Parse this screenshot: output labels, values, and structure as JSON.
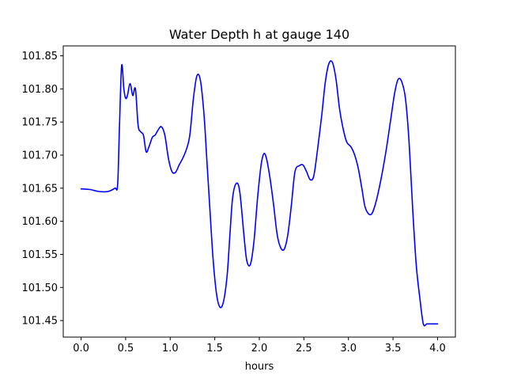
{
  "chart_data": {
    "type": "line",
    "title": "Water Depth h at gauge 140",
    "xlabel": "hours",
    "ylabel": "",
    "xlim": [
      -0.2,
      4.2
    ],
    "ylim": [
      101.425,
      101.865
    ],
    "xticks": [
      {
        "value": 0.0,
        "label": "0.0"
      },
      {
        "value": 0.5,
        "label": "0.5"
      },
      {
        "value": 1.0,
        "label": "1.0"
      },
      {
        "value": 1.5,
        "label": "1.5"
      },
      {
        "value": 2.0,
        "label": "2.0"
      },
      {
        "value": 2.5,
        "label": "2.5"
      },
      {
        "value": 3.0,
        "label": "3.0"
      },
      {
        "value": 3.5,
        "label": "3.5"
      },
      {
        "value": 4.0,
        "label": "4.0"
      }
    ],
    "yticks": [
      {
        "value": 101.45,
        "label": "101.45"
      },
      {
        "value": 101.5,
        "label": "101.50"
      },
      {
        "value": 101.55,
        "label": "101.55"
      },
      {
        "value": 101.6,
        "label": "101.60"
      },
      {
        "value": 101.65,
        "label": "101.65"
      },
      {
        "value": 101.7,
        "label": "101.70"
      },
      {
        "value": 101.75,
        "label": "101.75"
      },
      {
        "value": 101.8,
        "label": "101.80"
      },
      {
        "value": 101.85,
        "label": "101.85"
      }
    ],
    "grid": false,
    "series": [
      {
        "color": "#0000ff",
        "x": [
          0.0,
          0.1,
          0.2,
          0.3,
          0.38,
          0.41,
          0.43,
          0.455,
          0.48,
          0.5,
          0.52,
          0.55,
          0.58,
          0.61,
          0.64,
          0.67,
          0.7,
          0.73,
          0.76,
          0.8,
          0.83,
          0.86,
          0.9,
          0.94,
          0.98,
          1.02,
          1.06,
          1.1,
          1.14,
          1.18,
          1.22,
          1.26,
          1.3,
          1.34,
          1.38,
          1.41,
          1.44,
          1.48,
          1.52,
          1.56,
          1.6,
          1.64,
          1.67,
          1.7,
          1.74,
          1.78,
          1.83,
          1.86,
          1.9,
          1.94,
          1.98,
          2.02,
          2.05,
          2.08,
          2.12,
          2.16,
          2.2,
          2.24,
          2.28,
          2.32,
          2.36,
          2.4,
          2.45,
          2.49,
          2.53,
          2.57,
          2.61,
          2.65,
          2.7,
          2.74,
          2.78,
          2.82,
          2.86,
          2.9,
          2.94,
          2.98,
          3.03,
          3.07,
          3.11,
          3.15,
          3.19,
          3.25,
          3.3,
          3.36,
          3.42,
          3.47,
          3.52,
          3.56,
          3.6,
          3.64,
          3.68,
          3.72,
          3.76,
          3.8,
          3.84,
          3.88,
          3.92,
          3.96,
          4.0
        ],
        "y": [
          101.649,
          101.648,
          101.645,
          101.645,
          101.65,
          101.655,
          101.74,
          101.835,
          101.8,
          101.786,
          101.79,
          101.808,
          101.79,
          101.8,
          101.745,
          101.735,
          101.73,
          101.705,
          101.712,
          101.727,
          101.73,
          101.737,
          101.743,
          101.73,
          101.695,
          101.675,
          101.674,
          101.685,
          101.695,
          101.708,
          101.73,
          101.785,
          101.82,
          101.812,
          101.76,
          101.695,
          101.63,
          101.545,
          101.49,
          101.47,
          101.48,
          101.52,
          101.58,
          101.635,
          101.657,
          101.645,
          101.575,
          101.54,
          101.535,
          101.57,
          101.635,
          101.685,
          101.702,
          101.695,
          101.665,
          101.625,
          101.58,
          101.56,
          101.558,
          101.58,
          101.625,
          101.675,
          101.684,
          101.685,
          101.675,
          101.663,
          101.668,
          101.705,
          101.76,
          101.81,
          101.838,
          101.84,
          101.815,
          101.77,
          101.74,
          101.72,
          101.712,
          101.7,
          101.68,
          101.65,
          101.62,
          101.61,
          101.625,
          101.66,
          101.705,
          101.75,
          101.795,
          101.815,
          101.81,
          101.785,
          101.72,
          101.62,
          101.535,
          101.485,
          101.445,
          101.445,
          101.445,
          101.445,
          101.445
        ]
      }
    ]
  }
}
